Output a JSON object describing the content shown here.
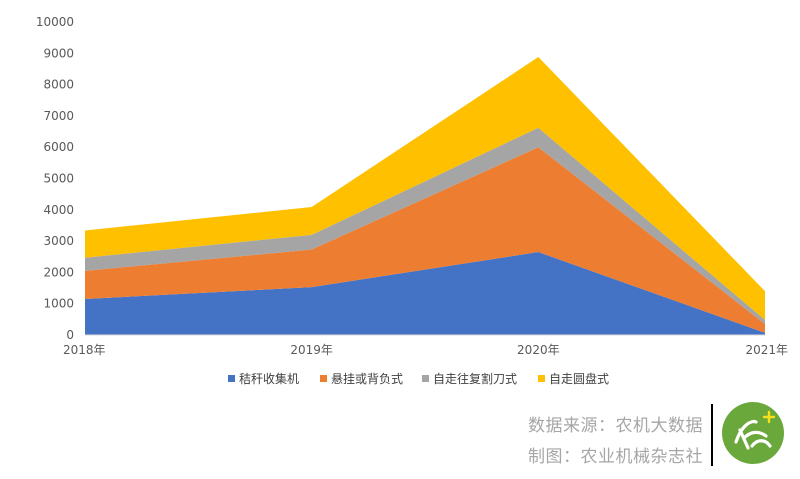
{
  "chart_data": {
    "type": "area",
    "stacked": true,
    "x": [
      "2018年",
      "2019年",
      "2020年",
      "2021年"
    ],
    "series": [
      {
        "name": "秸秆收集机",
        "values": [
          1150,
          1530,
          2650,
          70
        ],
        "color": "#4472c4"
      },
      {
        "name": "悬挂或背负式",
        "values": [
          900,
          1200,
          3350,
          280
        ],
        "color": "#ed7d31"
      },
      {
        "name": "自走往复割刀式",
        "values": [
          420,
          470,
          620,
          130
        ],
        "color": "#a5a5a5"
      },
      {
        "name": "自走圆盘式",
        "values": [
          870,
          890,
          2260,
          920
        ],
        "color": "#ffc000"
      }
    ],
    "ylim": [
      0,
      10000
    ],
    "yticks": [
      0,
      1000,
      2000,
      3000,
      4000,
      5000,
      6000,
      7000,
      8000,
      9000,
      10000
    ],
    "grid": false,
    "legend": "bottom"
  },
  "credits": {
    "source": "数据来源：农机大数据",
    "author": "制图：农业机械杂志社"
  },
  "logo": {
    "icon": "nongji-logo-icon",
    "color": "#6aa83b"
  }
}
